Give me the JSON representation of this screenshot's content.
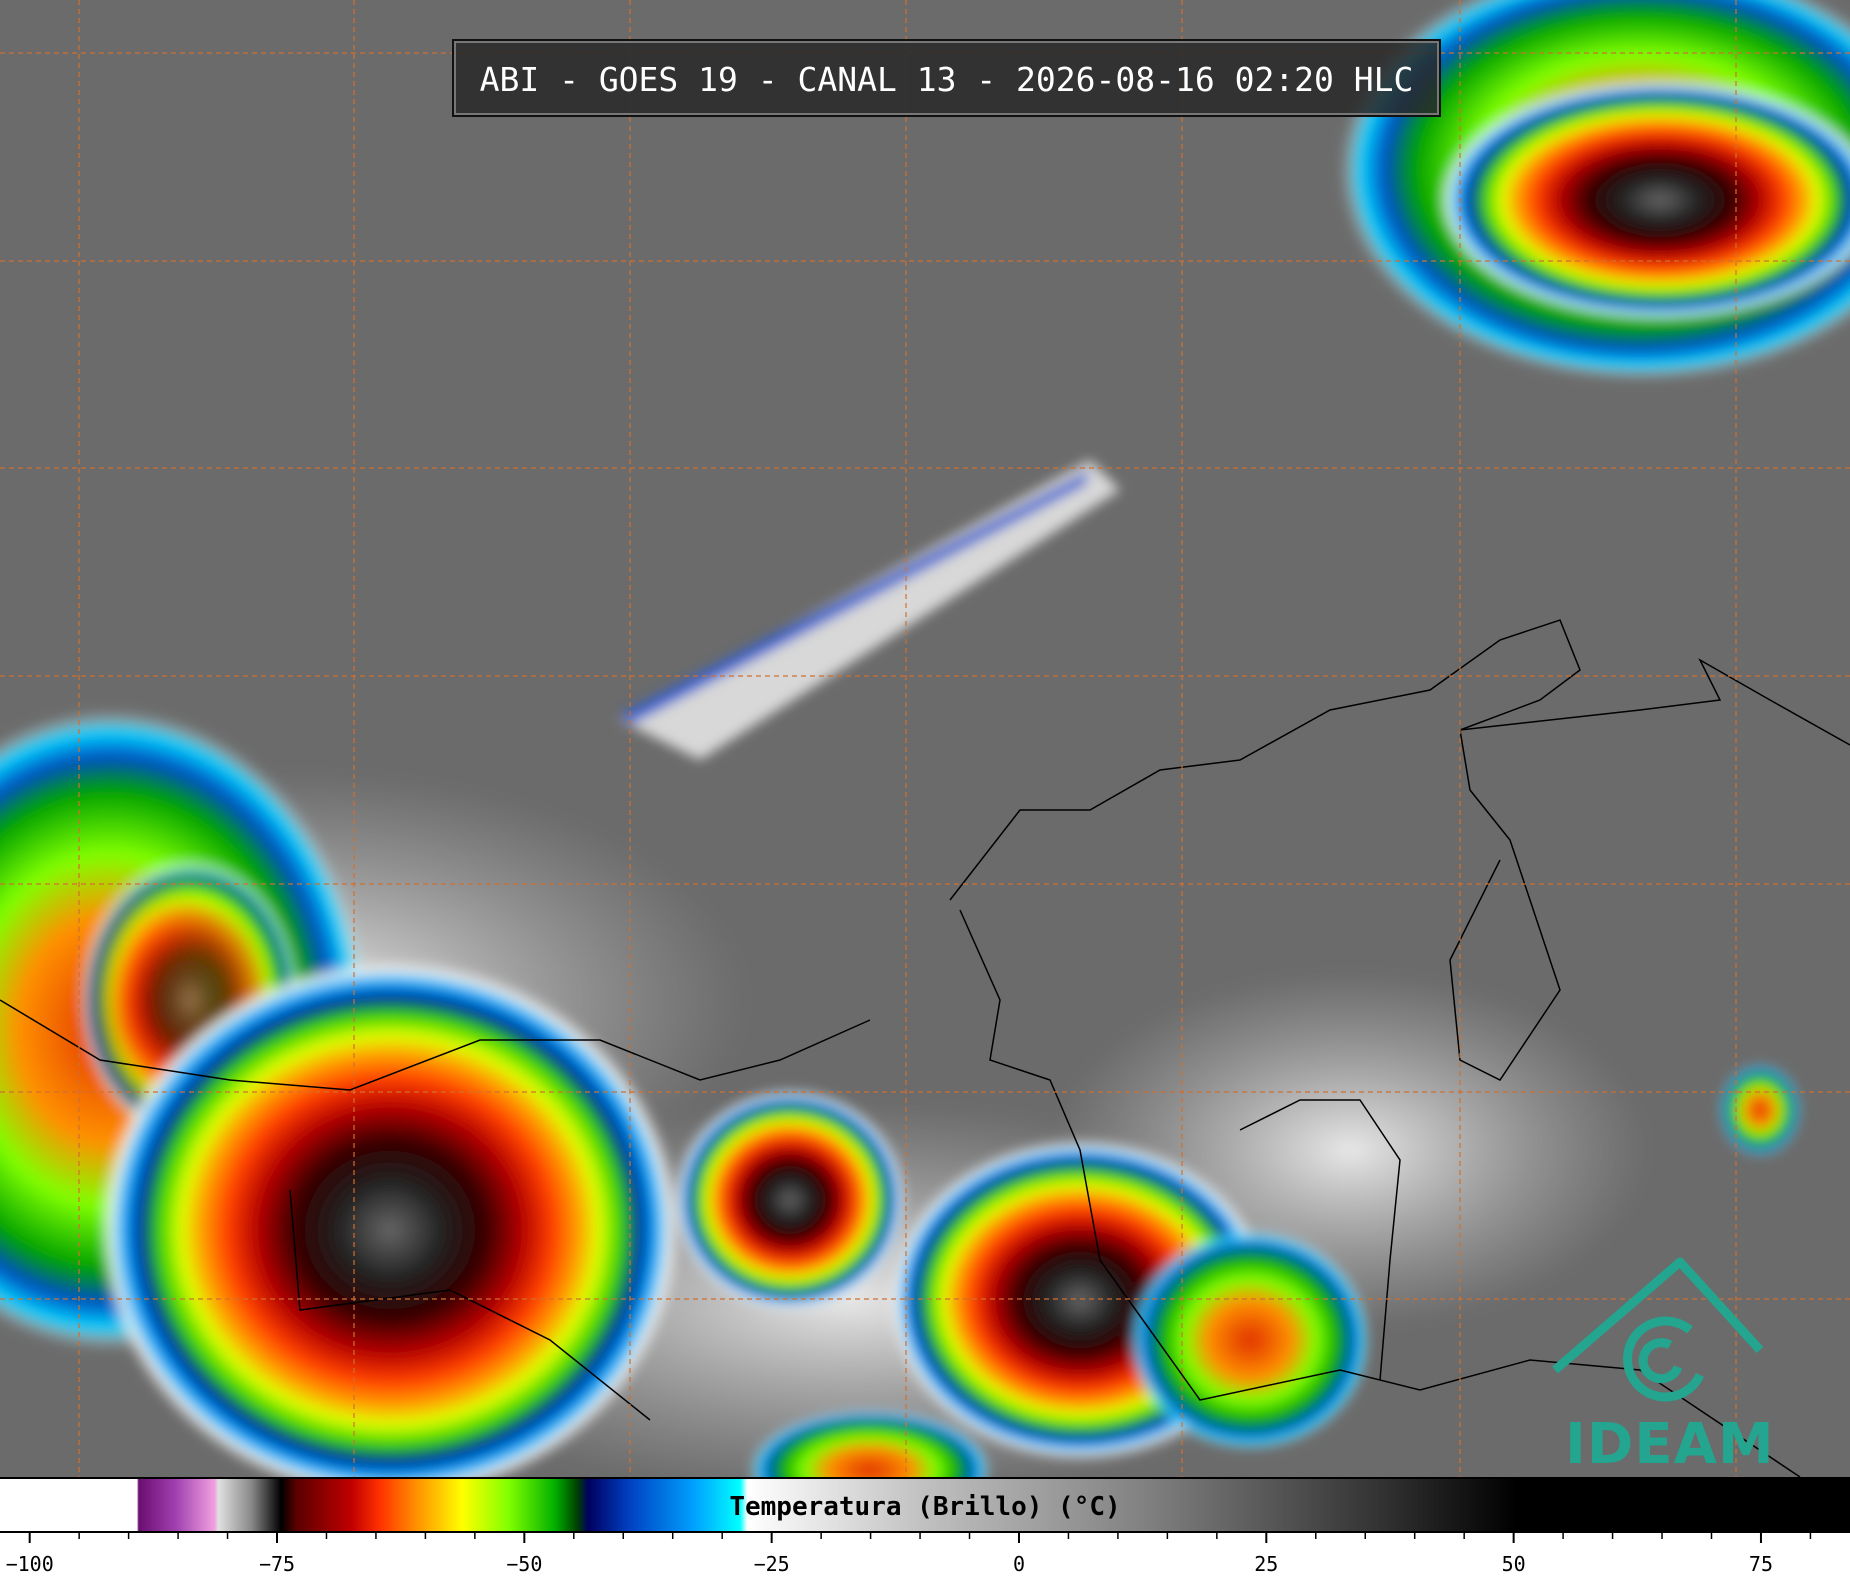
{
  "header": {
    "title": "ABI - GOES 19 - CANAL 13 - 2026-08-16 02:20 HLC"
  },
  "logo": {
    "text": "IDEAM"
  },
  "chart_data": {
    "type": "colorbar",
    "label": "Temperatura (Brillo) (°C)",
    "xlim": [
      -103,
      84
    ],
    "xticks": [
      {
        "value": -100,
        "label": "−100"
      },
      {
        "value": -75,
        "label": "−75"
      },
      {
        "value": -50,
        "label": "−50"
      },
      {
        "value": -25,
        "label": "−25"
      },
      0,
      25,
      50,
      75
    ],
    "xminorticks": [
      -95,
      -90,
      -85,
      -80,
      -70,
      -65,
      -60,
      -55,
      -45,
      -40,
      -35,
      -30,
      -20,
      -15,
      -10,
      -5,
      5,
      10,
      15,
      20,
      30,
      35,
      40,
      45,
      55,
      60,
      65,
      70,
      80
    ]
  }
}
